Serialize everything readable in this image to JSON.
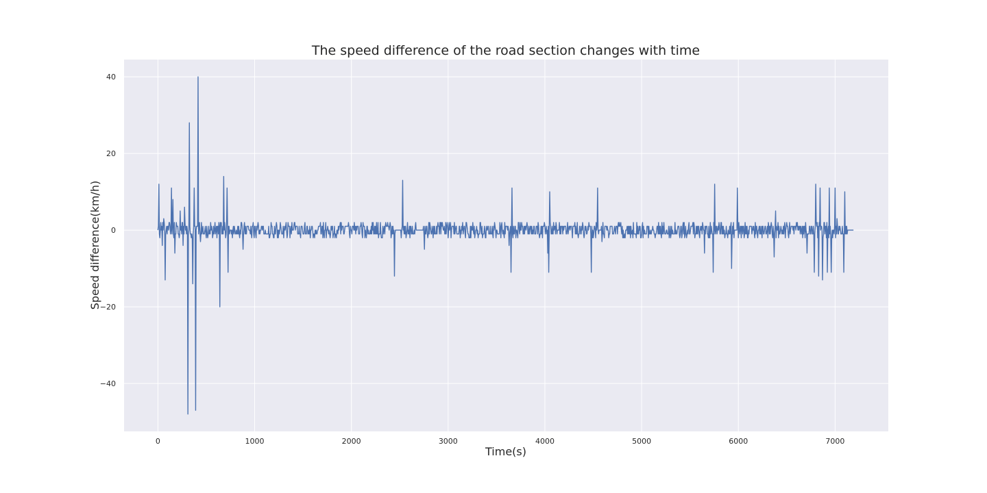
{
  "chart_data": {
    "type": "line",
    "title": "The speed difference of the road section changes with time",
    "xlabel": "Time(s)",
    "ylabel": "Speed difference(km/h)",
    "xlim": [
      -350,
      7550
    ],
    "ylim": [
      -52.5,
      44.5
    ],
    "xticks": [
      0,
      1000,
      2000,
      3000,
      4000,
      5000,
      6000,
      7000
    ],
    "xtick_labels": [
      "0",
      "1000",
      "2000",
      "3000",
      "4000",
      "5000",
      "6000",
      "7000"
    ],
    "yticks": [
      40,
      20,
      0,
      -20,
      -40
    ],
    "ytick_labels": [
      "40",
      "20",
      "0",
      "−20",
      "−40"
    ],
    "grid": true,
    "background": "#eaeaf2",
    "grid_color": "#ffffff",
    "series": [
      {
        "color": "#4c72b0",
        "noise_amplitude": 2,
        "x_range": [
          0,
          7190
        ],
        "spikes": [
          [
            10,
            12
          ],
          [
            18,
            -4
          ],
          [
            30,
            2
          ],
          [
            45,
            -4
          ],
          [
            60,
            3
          ],
          [
            75,
            -13
          ],
          [
            140,
            11
          ],
          [
            155,
            8
          ],
          [
            175,
            -6
          ],
          [
            230,
            5
          ],
          [
            260,
            -4
          ],
          [
            275,
            6
          ],
          [
            310,
            -48
          ],
          [
            325,
            28
          ],
          [
            345,
            -2
          ],
          [
            360,
            -14
          ],
          [
            375,
            11
          ],
          [
            390,
            -47
          ],
          [
            415,
            40
          ],
          [
            440,
            -3
          ],
          [
            640,
            -20
          ],
          [
            680,
            14
          ],
          [
            715,
            11
          ],
          [
            725,
            -11
          ],
          [
            880,
            -5
          ],
          [
            2445,
            -12
          ],
          [
            2530,
            13
          ],
          [
            2755,
            -5
          ],
          [
            3630,
            -4
          ],
          [
            3650,
            -11
          ],
          [
            3660,
            11
          ],
          [
            4030,
            -6
          ],
          [
            4040,
            -11
          ],
          [
            4050,
            10
          ],
          [
            4480,
            -11
          ],
          [
            4545,
            11
          ],
          [
            4590,
            -3
          ],
          [
            5650,
            -6
          ],
          [
            5740,
            -11
          ],
          [
            5755,
            12
          ],
          [
            5930,
            -10
          ],
          [
            5990,
            11
          ],
          [
            6370,
            -7
          ],
          [
            6385,
            5
          ],
          [
            6710,
            -6
          ],
          [
            6785,
            -11
          ],
          [
            6800,
            12
          ],
          [
            6830,
            -12
          ],
          [
            6845,
            11
          ],
          [
            6870,
            -13
          ],
          [
            6920,
            -11
          ],
          [
            6940,
            11
          ],
          [
            6960,
            -11
          ],
          [
            7000,
            11
          ],
          [
            7020,
            3
          ],
          [
            7090,
            -11
          ],
          [
            7100,
            10
          ]
        ],
        "quiet_ranges": [
          [
            2460,
            2500
          ],
          [
            2670,
            2740
          ],
          [
            4560,
            4570
          ],
          [
            5960,
            5985
          ],
          [
            7130,
            7190
          ]
        ]
      }
    ]
  }
}
